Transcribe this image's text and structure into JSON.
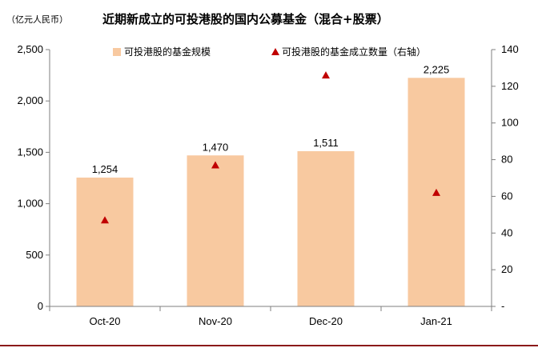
{
  "header": {
    "unit": "（亿元人民币）",
    "title": "近期新成立的可投港股的国内公募基金（混合+股票）"
  },
  "chart_data": {
    "type": "bar",
    "title": "近期新成立的可投港股的国内公募基金（混合+股票）",
    "categories": [
      "Oct-20",
      "Nov-20",
      "Dec-20",
      "Jan-21"
    ],
    "series": [
      {
        "name": "可投港股的基金规模",
        "type": "bar",
        "axis": "left",
        "values": [
          1254,
          1470,
          1511,
          2225
        ],
        "labels": [
          "1,254",
          "1,470",
          "1,511",
          "2,225"
        ],
        "color": "#F8C9A0"
      },
      {
        "name": "可投港股的基金成立数量（右轴）",
        "type": "scatter",
        "marker": "triangle",
        "axis": "right",
        "values": [
          47,
          77,
          126,
          62
        ],
        "color": "#C00000"
      }
    ],
    "left_axis": {
      "ylim": [
        0,
        2500
      ],
      "ticks": [
        0,
        500,
        1000,
        1500,
        2000,
        2500
      ],
      "tick_labels": [
        "0",
        "500",
        "1,000",
        "1,500",
        "2,000",
        "2,500"
      ]
    },
    "right_axis": {
      "ylim": [
        0,
        140
      ],
      "ticks": [
        0,
        20,
        40,
        60,
        80,
        100,
        120,
        140
      ],
      "tick_labels": [
        "-",
        "20",
        "40",
        "60",
        "80",
        "100",
        "120",
        "140"
      ]
    },
    "legend_placement": "top",
    "grid": false
  }
}
